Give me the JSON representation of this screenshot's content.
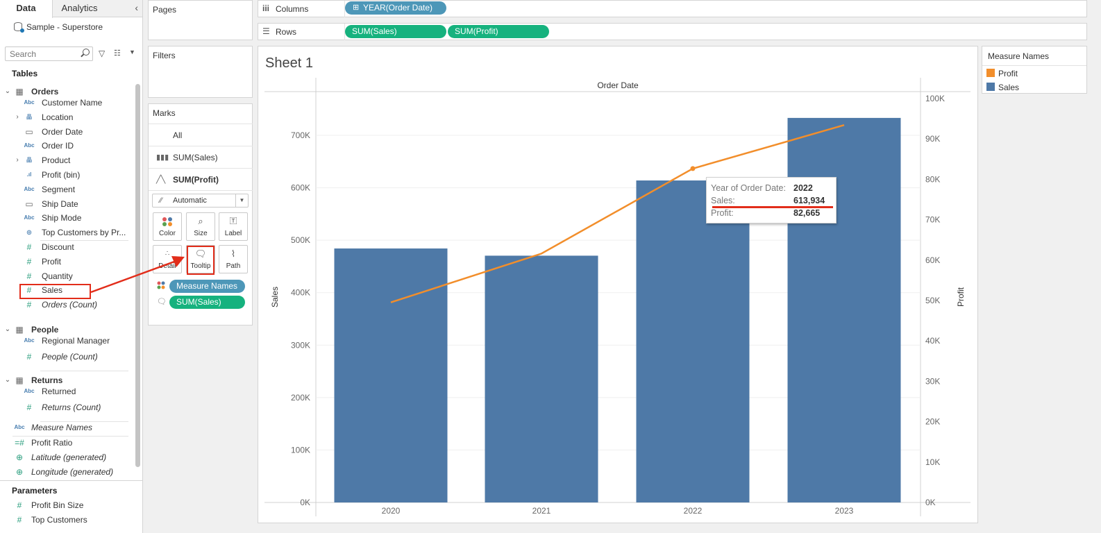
{
  "data_pane": {
    "tabs": [
      "Data",
      "Analytics"
    ],
    "datasource": "Sample - Superstore",
    "search_placeholder": "Search",
    "tables_title": "Tables",
    "tables": [
      {
        "name": "Orders",
        "fields": [
          {
            "type": "Abc",
            "label": "Customer Name"
          },
          {
            "type": "hier",
            "label": "Location"
          },
          {
            "type": "date",
            "label": "Order Date"
          },
          {
            "type": "Abc",
            "label": "Order ID"
          },
          {
            "type": "hier",
            "label": "Product"
          },
          {
            "type": "bin",
            "label": "Profit (bin)"
          },
          {
            "type": "Abc",
            "label": "Segment"
          },
          {
            "type": "date",
            "label": "Ship Date"
          },
          {
            "type": "Abc",
            "label": "Ship Mode"
          },
          {
            "type": "set",
            "label": "Top Customers by Pr..."
          },
          {
            "type": "#",
            "label": "Discount"
          },
          {
            "type": "#",
            "label": "Profit"
          },
          {
            "type": "#",
            "label": "Quantity"
          },
          {
            "type": "#",
            "label": "Sales"
          },
          {
            "type": "#",
            "label": "Orders (Count)"
          }
        ]
      },
      {
        "name": "People",
        "fields": [
          {
            "type": "Abc",
            "label": "Regional Manager"
          },
          {
            "type": "#",
            "label": "People (Count)"
          }
        ]
      },
      {
        "name": "Returns",
        "fields": [
          {
            "type": "Abc",
            "label": "Returned"
          },
          {
            "type": "#",
            "label": "Returns (Count)"
          }
        ]
      }
    ],
    "extra_fields": [
      {
        "type": "Abc",
        "label": "Measure Names"
      },
      {
        "type": "calc",
        "label": "Profit Ratio"
      },
      {
        "type": "geo",
        "label": "Latitude (generated)"
      },
      {
        "type": "geo",
        "label": "Longitude (generated)"
      }
    ],
    "parameters_title": "Parameters",
    "parameters": [
      "Profit Bin Size",
      "Top Customers"
    ]
  },
  "pages_title": "Pages",
  "filters_title": "Filters",
  "marks": {
    "title": "Marks",
    "cards": [
      "All",
      "SUM(Sales)",
      "SUM(Profit)"
    ],
    "mark_type": "Automatic",
    "buttons": [
      "Color",
      "Size",
      "Label",
      "Detail",
      "Tooltip",
      "Path"
    ],
    "pills": [
      "Measure Names",
      "SUM(Sales)"
    ]
  },
  "shelves": {
    "columns_label": "Columns",
    "rows_label": "Rows",
    "columns_pills": [
      "YEAR(Order Date)"
    ],
    "rows_pills": [
      "SUM(Sales)",
      "SUM(Profit)"
    ]
  },
  "sheet_title": "Sheet 1",
  "tooltip": {
    "rows": [
      {
        "key": "Year of Order Date:",
        "value": "2022"
      },
      {
        "key": "Sales:",
        "value": "613,934"
      },
      {
        "key": "Profit:",
        "value": "82,665"
      }
    ]
  },
  "legend": {
    "title": "Measure Names",
    "items": [
      {
        "label": "Profit",
        "color": "#f28e2b"
      },
      {
        "label": "Sales",
        "color": "#4e79a7"
      }
    ]
  },
  "chart_data": {
    "type": "bar",
    "title": "Order Date",
    "categories": [
      "2020",
      "2021",
      "2022",
      "2023"
    ],
    "series": [
      {
        "name": "Sales",
        "type": "bar",
        "axis": "left",
        "color": "#4e79a7",
        "values": [
          484247,
          470533,
          613934,
          733215
        ]
      },
      {
        "name": "Profit",
        "type": "line",
        "axis": "right",
        "color": "#f28e2b",
        "values": [
          49544,
          61619,
          82665,
          93440
        ]
      }
    ],
    "xlabel": "",
    "ylabel": "Sales",
    "y2label": "Profit",
    "ylim": [
      0,
      780000
    ],
    "y2lim": [
      0,
      101500
    ],
    "yticks": [
      0,
      100000,
      200000,
      300000,
      400000,
      500000,
      600000,
      700000
    ],
    "yticklabels": [
      "0K",
      "100K",
      "200K",
      "300K",
      "400K",
      "500K",
      "600K",
      "700K"
    ],
    "y2ticks": [
      0,
      10000,
      20000,
      30000,
      40000,
      50000,
      60000,
      70000,
      80000,
      90000,
      100000
    ],
    "y2ticklabels": [
      "0K",
      "10K",
      "20K",
      "30K",
      "40K",
      "50K",
      "60K",
      "70K",
      "80K",
      "90K",
      "100K"
    ],
    "highlight_category": "2022"
  },
  "colors": {
    "annotation_red": "#e22d1a",
    "pill_blue": "#4d97b8",
    "pill_green": "#16b27e"
  }
}
